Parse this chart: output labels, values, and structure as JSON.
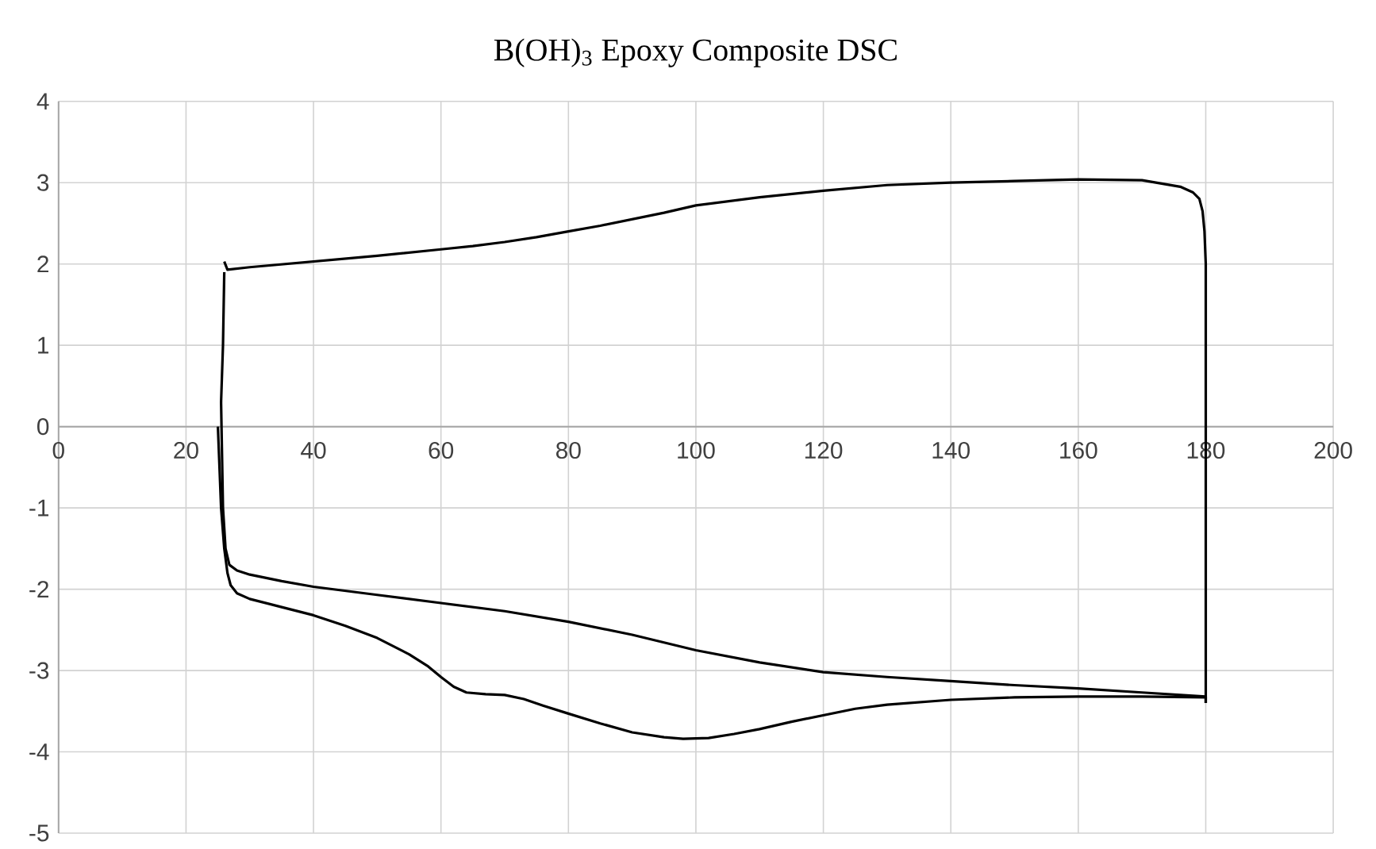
{
  "chart_data": {
    "type": "line",
    "title": "B(OH)$_{3}$ Epoxy Composite DSC",
    "xlim": [
      0,
      200
    ],
    "xticks": [
      0,
      20,
      40,
      60,
      80,
      100,
      120,
      140,
      160,
      180,
      200
    ],
    "ylim": [
      -5,
      4
    ],
    "yticks": [
      -5,
      -4,
      -3,
      -2,
      -1,
      0,
      1,
      2,
      3,
      4
    ],
    "grid": true,
    "marker": "none",
    "line_style": "solid",
    "series": [
      {
        "color": "#000000",
        "x": [
          25,
          25.5,
          26,
          26.5,
          27,
          28,
          30,
          35,
          40,
          45,
          50,
          55,
          58,
          60,
          62,
          64,
          67,
          70,
          73,
          76,
          80,
          85,
          90,
          95,
          98,
          102,
          106,
          110,
          115,
          120,
          125,
          130,
          140,
          150,
          160,
          170,
          180
        ],
        "values": [
          0,
          -1,
          -1.5,
          -1.8,
          -1.95,
          -2.05,
          -2.12,
          -2.22,
          -2.32,
          -2.45,
          -2.6,
          -2.8,
          -2.95,
          -3.08,
          -3.2,
          -3.27,
          -3.29,
          -3.3,
          -3.35,
          -3.43,
          -3.53,
          -3.65,
          -3.76,
          -3.82,
          -3.84,
          -3.83,
          -3.78,
          -3.72,
          -3.63,
          -3.55,
          -3.47,
          -3.42,
          -3.36,
          -3.33,
          -3.32,
          -3.32,
          -3.33
        ]
      },
      {
        "color": "#000000",
        "x": [
          180,
          180,
          179.8,
          179.5,
          179,
          178,
          176,
          170,
          160,
          150,
          140,
          130,
          120,
          110,
          100,
          95,
          90,
          85,
          80,
          75,
          70,
          65,
          60,
          50,
          40,
          30,
          26.5,
          26
        ],
        "values": [
          -3.4,
          2,
          2.4,
          2.65,
          2.8,
          2.88,
          2.95,
          3.03,
          3.04,
          3.02,
          3.0,
          2.97,
          2.9,
          2.82,
          2.72,
          2.63,
          2.55,
          2.47,
          2.4,
          2.33,
          2.27,
          2.22,
          2.18,
          2.1,
          2.03,
          1.96,
          1.93,
          2.03
        ]
      },
      {
        "color": "#000000",
        "x": [
          26,
          25.8,
          25.5,
          25.8,
          26.2,
          26.8,
          28,
          30,
          35,
          40,
          50,
          60,
          70,
          80,
          90,
          100,
          110,
          120,
          130,
          140,
          150,
          160,
          170,
          180,
          180
        ],
        "values": [
          1.9,
          1.0,
          0.3,
          -1.0,
          -1.5,
          -1.7,
          -1.77,
          -1.82,
          -1.9,
          -1.97,
          -2.07,
          -2.17,
          -2.27,
          -2.4,
          -2.56,
          -2.75,
          -2.9,
          -3.02,
          -3.08,
          -3.13,
          -3.18,
          -3.22,
          -3.27,
          -3.32,
          -3.4
        ]
      }
    ]
  }
}
